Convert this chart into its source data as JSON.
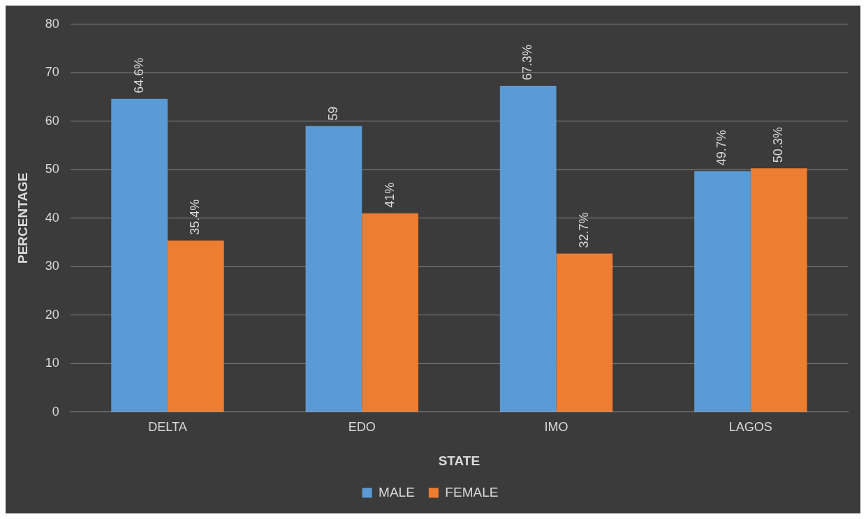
{
  "chart_data": {
    "type": "bar",
    "xlabel": "STATE",
    "ylabel": "PERCENTAGE",
    "categories": [
      "DELTA",
      "EDO",
      "IMO",
      "LAGOS"
    ],
    "series": [
      {
        "name": "MALE",
        "color": "#5b9bd5",
        "values": [
          64.6,
          59,
          67.3,
          49.7
        ],
        "value_labels": [
          "64.6%",
          "59",
          "67.3%",
          "49.7%"
        ]
      },
      {
        "name": "FEMALE",
        "color": "#ed7d31",
        "values": [
          35.4,
          41,
          32.7,
          50.3
        ],
        "value_labels": [
          "35.4%",
          "41%",
          "32.7%",
          "50.3%"
        ]
      }
    ],
    "ylim": [
      0,
      80
    ],
    "yticks": [
      0,
      10,
      20,
      30,
      40,
      50,
      60,
      70,
      80
    ],
    "grid": "y",
    "legend": "bottom"
  }
}
